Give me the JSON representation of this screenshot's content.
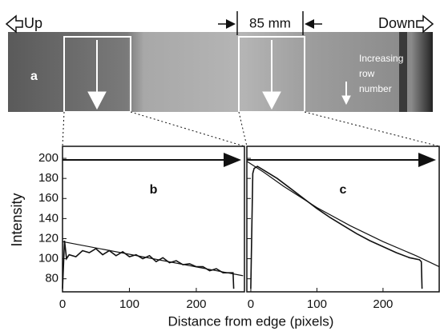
{
  "photo": {
    "left_label": "Up",
    "right_label": "Down",
    "scale_label": "85 mm",
    "panel_label": "a",
    "note_lines": [
      "Increasing",
      "row",
      "number"
    ]
  },
  "figure": {
    "xlabel": "Distance from edge (pixels)",
    "ylabel": "Intensity"
  },
  "chart_data": [
    {
      "type": "line",
      "panel_label": "b",
      "xlim": [
        0,
        272
      ],
      "ylim": [
        67,
        212
      ],
      "xticks": [
        0,
        100,
        200
      ],
      "yticks": [
        80,
        100,
        120,
        140,
        160,
        180,
        200
      ],
      "series": [
        {
          "color": "#111111",
          "x": [
            0,
            3,
            6,
            10,
            20,
            30,
            40,
            50,
            60,
            70,
            80,
            90,
            100,
            110,
            120,
            130,
            140,
            150,
            160,
            170,
            180,
            190,
            200,
            210,
            220,
            230,
            240,
            250,
            255,
            256
          ],
          "values": [
            70,
            118,
            100,
            104,
            102,
            108,
            106,
            110,
            104,
            108,
            103,
            107,
            102,
            104,
            100,
            103,
            97,
            101,
            96,
            98,
            94,
            95,
            92,
            92,
            88,
            90,
            86,
            86,
            86,
            70
          ]
        },
        {
          "color": "#111111",
          "x": [
            0,
            270
          ],
          "values": [
            117,
            83
          ]
        }
      ]
    },
    {
      "type": "line",
      "panel_label": "c",
      "xlim": [
        -6,
        285
      ],
      "ylim": [
        67,
        212
      ],
      "xticks": [
        0,
        100,
        200
      ],
      "yticks": [
        80,
        100,
        120,
        140,
        160,
        180,
        200
      ],
      "series": [
        {
          "color": "#111111",
          "x": [
            0,
            3,
            5,
            10,
            20,
            40,
            60,
            80,
            100,
            120,
            140,
            160,
            180,
            200,
            220,
            240,
            255,
            258,
            259
          ],
          "values": [
            70,
            185,
            190,
            192,
            188,
            180,
            170,
            160,
            150,
            141,
            133,
            125,
            118,
            112,
            106,
            101,
            99,
            97,
            70
          ]
        },
        {
          "color": "#111111",
          "x": [
            -6,
            20,
            50,
            100,
            150,
            200,
            250,
            285
          ],
          "values": [
            197,
            186,
            172,
            151,
            133,
            117,
            103,
            92
          ]
        }
      ]
    }
  ]
}
